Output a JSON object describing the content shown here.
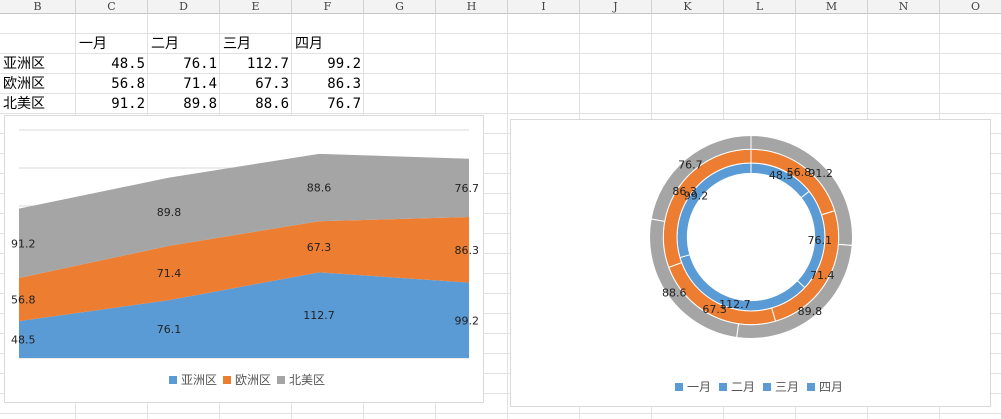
{
  "spreadsheet": {
    "columns": [
      "B",
      "C",
      "D",
      "E",
      "F",
      "G",
      "H",
      "I",
      "J",
      "K",
      "L",
      "M",
      "N",
      "O"
    ],
    "header_row": [
      "",
      "一月",
      "二月",
      "三月",
      "四月"
    ],
    "rows": [
      {
        "label": "亚洲区",
        "values": [
          "48.5",
          "76.1",
          "112.7",
          "99.2"
        ]
      },
      {
        "label": "欧洲区",
        "values": [
          "56.8",
          "71.4",
          "67.3",
          "86.3"
        ]
      },
      {
        "label": "北美区",
        "values": [
          "91.2",
          "89.8",
          "88.6",
          "76.7"
        ]
      }
    ]
  },
  "chart_data": [
    {
      "type": "area",
      "stacked": true,
      "categories": [
        "一月",
        "二月",
        "三月",
        "四月"
      ],
      "series": [
        {
          "name": "亚洲区",
          "values": [
            48.5,
            76.1,
            112.7,
            99.2
          ],
          "color": "#5b9bd5"
        },
        {
          "name": "欧洲区",
          "values": [
            56.8,
            71.4,
            67.3,
            86.3
          ],
          "color": "#ed7d31"
        },
        {
          "name": "北美区",
          "values": [
            91.2,
            89.8,
            88.6,
            76.7
          ],
          "color": "#a5a5a5"
        }
      ],
      "ylim": [
        0,
        300
      ],
      "grid": true,
      "legend": "bottom"
    },
    {
      "type": "pie",
      "variant": "doughnut",
      "categories": [
        "一月",
        "二月",
        "三月",
        "四月"
      ],
      "legend_color": "#5b9bd5",
      "rings": [
        {
          "name": "亚洲区",
          "values": [
            48.5,
            76.1,
            112.7,
            99.2
          ],
          "color": "#5b9bd5"
        },
        {
          "name": "欧洲区",
          "values": [
            56.8,
            71.4,
            67.3,
            86.3
          ],
          "color": "#ed7d31"
        },
        {
          "name": "北美区",
          "values": [
            91.2,
            89.8,
            88.6,
            76.7
          ],
          "color": "#a5a5a5"
        }
      ],
      "legend": "bottom"
    }
  ]
}
